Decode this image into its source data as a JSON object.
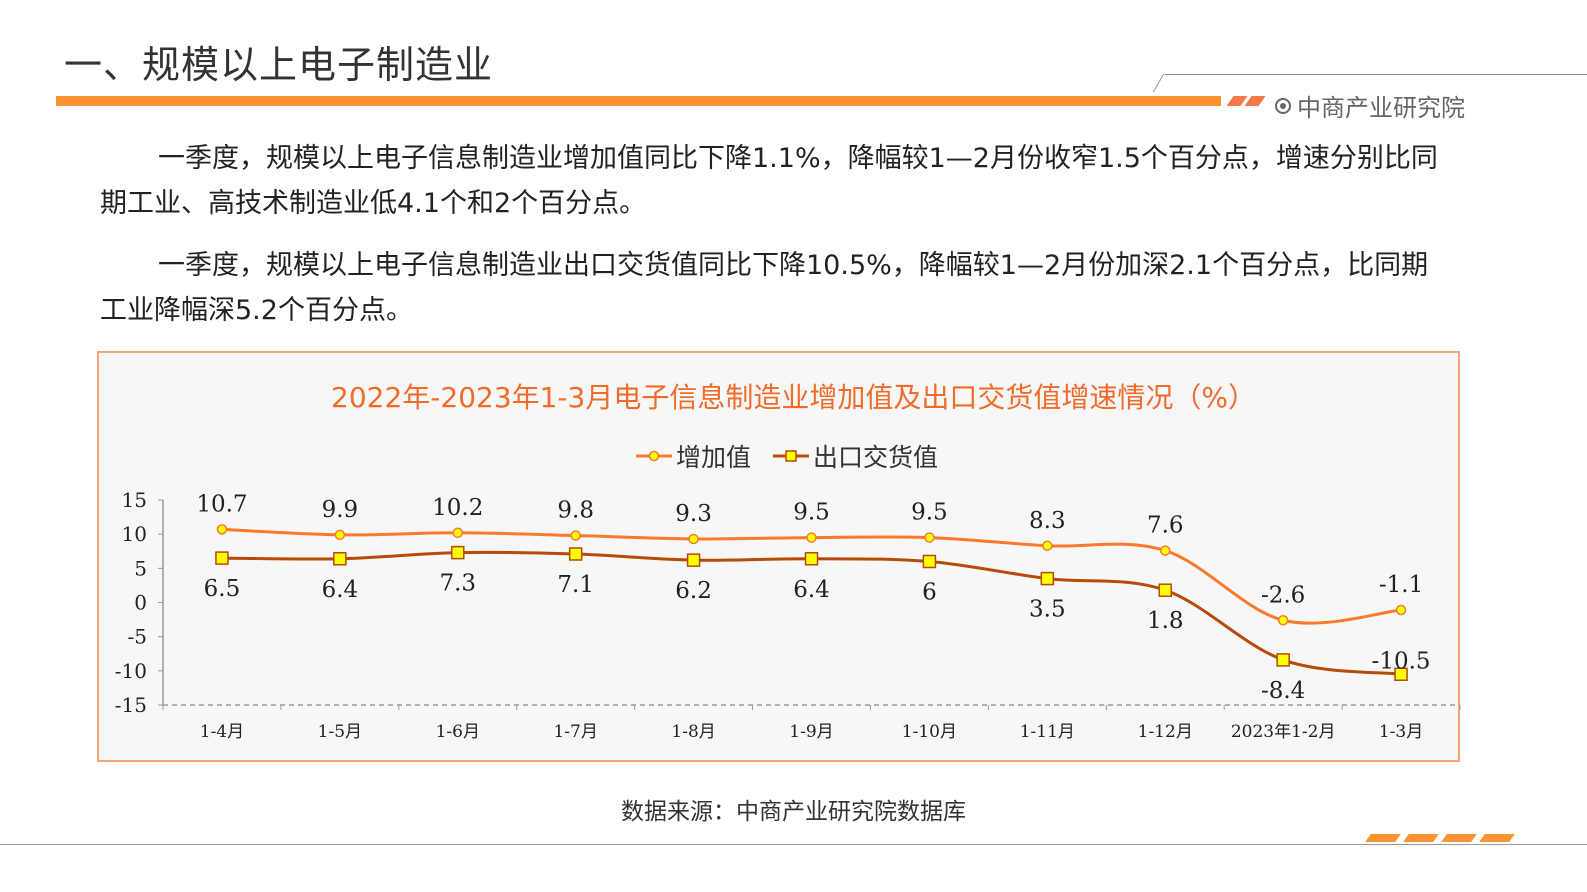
{
  "header": {
    "title": "一、规模以上电子制造业",
    "brand": "中商产业研究院",
    "brand_icon": "target-icon"
  },
  "paragraphs": [
    "一季度，规模以上电子信息制造业增加值同比下降1.1%，降幅较1—2月份收窄1.5个百分点，增速分别比同期工业、高技术制造业低4.1个和2个百分点。",
    "一季度，规模以上电子信息制造业出口交货值同比下降10.5%，降幅较1—2月份加深2.1个百分点，比同期工业降幅深5.2个百分点。"
  ],
  "source": "数据来源：中商产业研究院数据库",
  "colors": {
    "accent": "#fb9331",
    "series1": "#f97a2a",
    "series2": "#b84a0a",
    "marker": "#ffff00"
  },
  "chart_data": {
    "type": "line",
    "title": "2022年-2023年1-3月电子信息制造业增加值及出口交货值增速情况（%）",
    "categories": [
      "1-4月",
      "1-5月",
      "1-6月",
      "1-7月",
      "1-8月",
      "1-9月",
      "1-10月",
      "1-11月",
      "1-12月",
      "2023年1-2月",
      "1-3月"
    ],
    "ylim": [
      -15,
      15
    ],
    "yticks": [
      "15",
      "10",
      "5",
      "0",
      "-5",
      "-10",
      "-15"
    ],
    "legend_position": "top",
    "series": [
      {
        "name": "增加值",
        "values": [
          10.7,
          9.9,
          10.2,
          9.8,
          9.3,
          9.5,
          9.5,
          8.3,
          7.6,
          -2.6,
          -1.1
        ],
        "labels": [
          "10.7",
          "9.9",
          "10.2",
          "9.8",
          "9.3",
          "9.5",
          "9.5",
          "8.3",
          "7.6",
          "-2.6",
          "-1.1"
        ]
      },
      {
        "name": "出口交货值",
        "values": [
          6.5,
          6.4,
          7.3,
          7.1,
          6.2,
          6.4,
          6,
          3.5,
          1.8,
          -8.4,
          -10.5
        ],
        "labels": [
          "6.5",
          "6.4",
          "7.3",
          "7.1",
          "6.2",
          "6.4",
          "6",
          "3.5",
          "1.8",
          "-8.4",
          "-10.5"
        ]
      }
    ]
  }
}
